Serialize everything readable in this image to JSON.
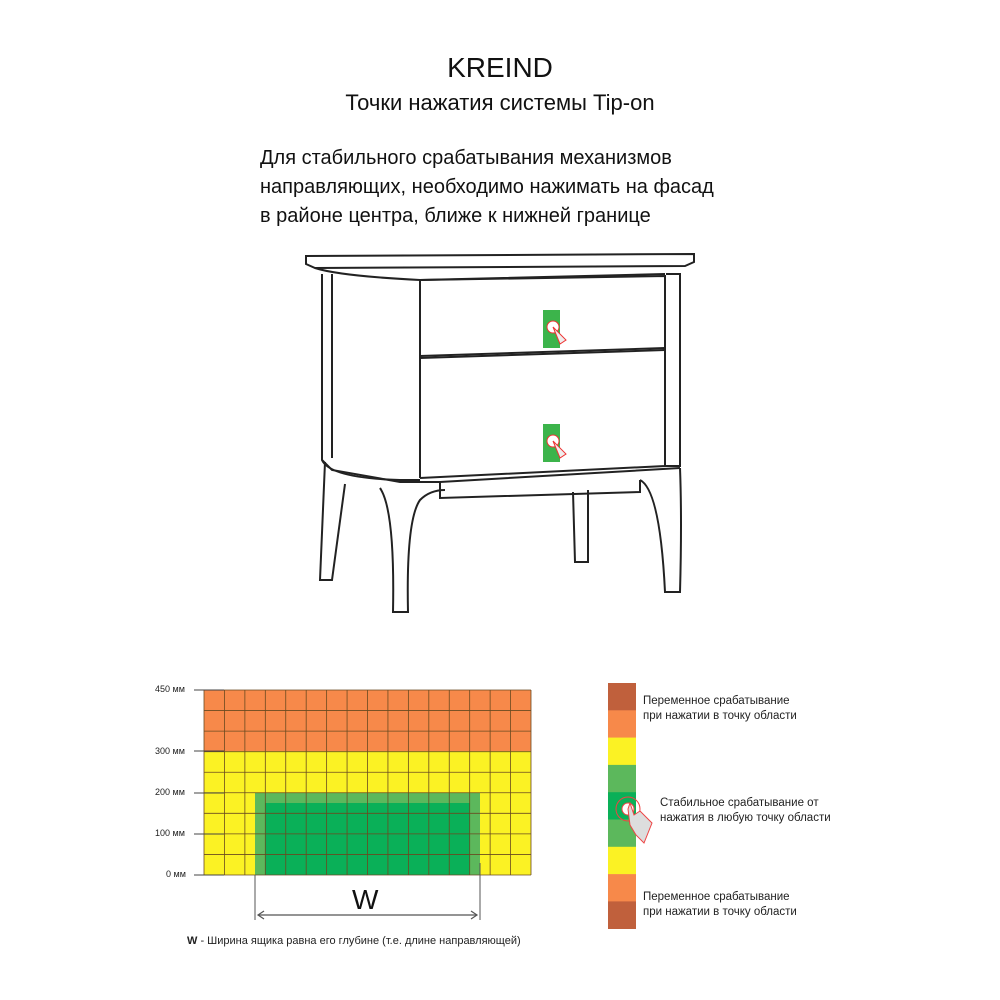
{
  "header": {
    "brand": "KREIND",
    "subtitle": "Точки нажатия системы Tip-on"
  },
  "instruction": {
    "lines": [
      "Для стабильного срабатывания механизмов",
      "направляющих, необходимо нажимать на фасад",
      "в районе центра, ближе к нижней границе"
    ]
  },
  "zone_diagram": {
    "y_ticks": [
      "450 мм",
      "300 мм",
      "200 мм",
      "100 мм",
      "0 мм"
    ],
    "width_label": "W",
    "note_bold": "W",
    "note_text": " - Ширина ящика равна его глубине (т.е. длине направляющей)",
    "colors": {
      "orange": "#f7894a",
      "yellow": "#fbf224",
      "light_green": "#5cb85c",
      "dark_green": "#0ab058",
      "brown": "#c0603c"
    }
  },
  "legend": {
    "variable_top": [
      "Переменное срабатывание",
      "при нажатии в точку области"
    ],
    "stable": [
      "Стабильное срабатывание от",
      "нажатия в любую точку области"
    ],
    "variable_bottom": [
      "Переменное срабатывание",
      "при нажатии в точку области"
    ],
    "icon": "hand-press-icon"
  }
}
